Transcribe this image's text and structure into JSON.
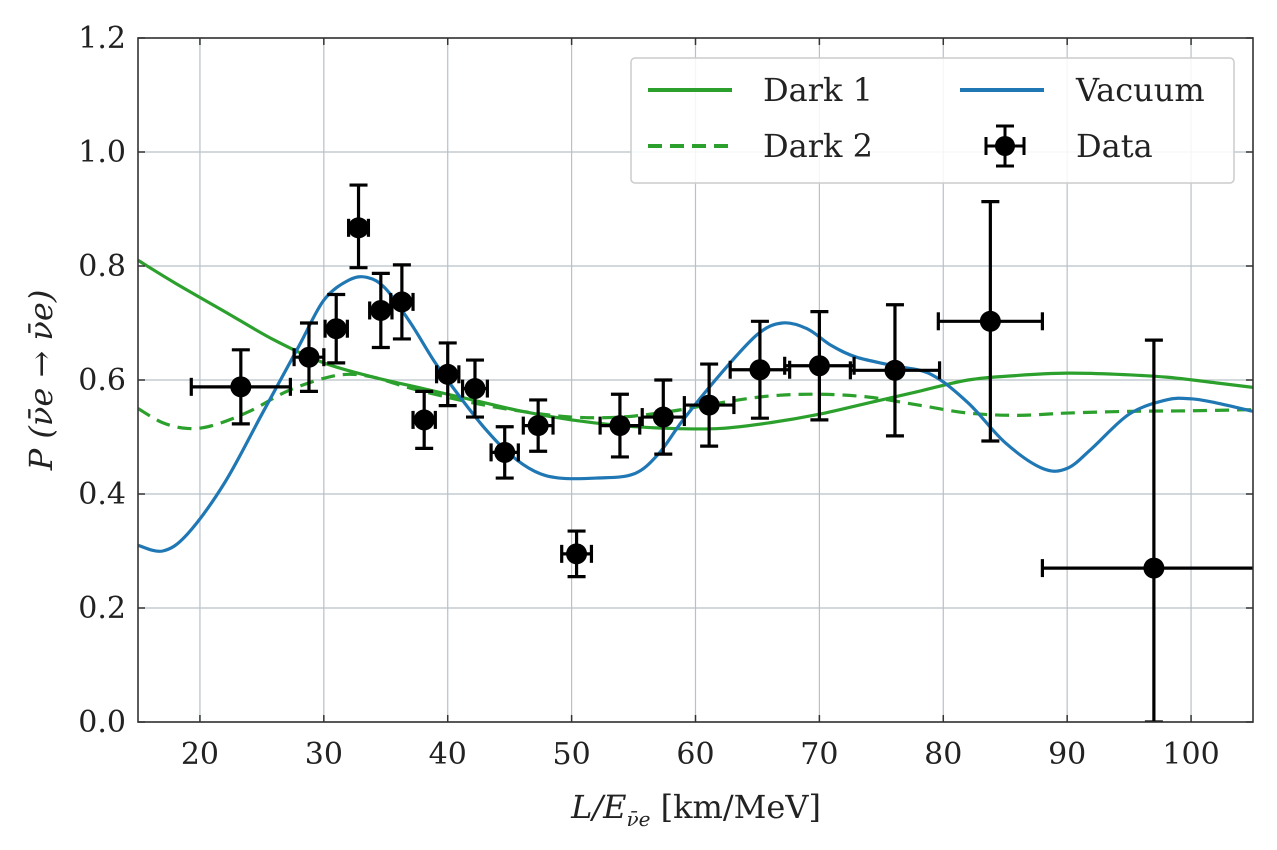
{
  "chart_data": {
    "type": "line",
    "xlabel": "L/E",
    "xlabel_subscript": "ν̄e",
    "xlabel_unit": "[km/MeV]",
    "ylabel": "P",
    "ylabel_argument": "(ν̄e → ν̄e)",
    "xlim": [
      15,
      105
    ],
    "ylim": [
      0.0,
      1.2
    ],
    "xticks": [
      20,
      30,
      40,
      50,
      60,
      70,
      80,
      90,
      100
    ],
    "yticks": [
      0.0,
      0.2,
      0.4,
      0.6,
      0.8,
      1.0,
      1.2
    ],
    "xtick_labels": [
      "20",
      "30",
      "40",
      "50",
      "60",
      "70",
      "80",
      "90",
      "100"
    ],
    "ytick_labels": [
      "0.0",
      "0.2",
      "0.4",
      "0.6",
      "0.8",
      "1.0",
      "1.2"
    ],
    "grid": true,
    "legend_position": "top-right",
    "legend_columns": 2,
    "series": [
      {
        "name": "Dark 1",
        "style": "solid",
        "color": "#2ca02c",
        "points": [
          [
            15,
            0.81
          ],
          [
            18,
            0.77
          ],
          [
            22,
            0.72
          ],
          [
            26,
            0.67
          ],
          [
            30,
            0.63
          ],
          [
            34,
            0.605
          ],
          [
            38,
            0.585
          ],
          [
            42,
            0.565
          ],
          [
            46,
            0.545
          ],
          [
            50,
            0.53
          ],
          [
            54,
            0.52
          ],
          [
            58,
            0.515
          ],
          [
            62,
            0.515
          ],
          [
            66,
            0.525
          ],
          [
            70,
            0.54
          ],
          [
            74,
            0.56
          ],
          [
            78,
            0.58
          ],
          [
            82,
            0.6
          ],
          [
            86,
            0.608
          ],
          [
            90,
            0.612
          ],
          [
            94,
            0.61
          ],
          [
            98,
            0.605
          ],
          [
            102,
            0.595
          ],
          [
            105,
            0.587
          ]
        ]
      },
      {
        "name": "Dark 2",
        "style": "dashed",
        "color": "#2ca02c",
        "points": [
          [
            15,
            0.55
          ],
          [
            17,
            0.525
          ],
          [
            19,
            0.515
          ],
          [
            21,
            0.52
          ],
          [
            24,
            0.545
          ],
          [
            27,
            0.58
          ],
          [
            30,
            0.603
          ],
          [
            32,
            0.61
          ],
          [
            34,
            0.605
          ],
          [
            36,
            0.592
          ],
          [
            38,
            0.58
          ],
          [
            42,
            0.56
          ],
          [
            46,
            0.545
          ],
          [
            50,
            0.535
          ],
          [
            54,
            0.535
          ],
          [
            58,
            0.545
          ],
          [
            62,
            0.56
          ],
          [
            66,
            0.572
          ],
          [
            70,
            0.575
          ],
          [
            74,
            0.57
          ],
          [
            78,
            0.556
          ],
          [
            82,
            0.542
          ],
          [
            86,
            0.538
          ],
          [
            90,
            0.542
          ],
          [
            95,
            0.545
          ],
          [
            100,
            0.546
          ],
          [
            105,
            0.548
          ]
        ]
      },
      {
        "name": "Vacuum",
        "style": "solid",
        "color": "#1f77b4",
        "points": [
          [
            15,
            0.31
          ],
          [
            17,
            0.3
          ],
          [
            19,
            0.33
          ],
          [
            22,
            0.42
          ],
          [
            25,
            0.54
          ],
          [
            28,
            0.66
          ],
          [
            30,
            0.74
          ],
          [
            32,
            0.775
          ],
          [
            33.5,
            0.78
          ],
          [
            35,
            0.76
          ],
          [
            37,
            0.7
          ],
          [
            39,
            0.63
          ],
          [
            41,
            0.57
          ],
          [
            43,
            0.515
          ],
          [
            45,
            0.47
          ],
          [
            47,
            0.44
          ],
          [
            49,
            0.428
          ],
          [
            52,
            0.428
          ],
          [
            55,
            0.435
          ],
          [
            57,
            0.47
          ],
          [
            59,
            0.53
          ],
          [
            62,
            0.61
          ],
          [
            65,
            0.68
          ],
          [
            67,
            0.7
          ],
          [
            69,
            0.69
          ],
          [
            71,
            0.66
          ],
          [
            73,
            0.64
          ],
          [
            76,
            0.625
          ],
          [
            79,
            0.61
          ],
          [
            82,
            0.56
          ],
          [
            85,
            0.49
          ],
          [
            88,
            0.445
          ],
          [
            90,
            0.445
          ],
          [
            92,
            0.48
          ],
          [
            95,
            0.54
          ],
          [
            98,
            0.565
          ],
          [
            100,
            0.567
          ],
          [
            102,
            0.56
          ],
          [
            105,
            0.545
          ]
        ]
      }
    ],
    "data": {
      "name": "Data",
      "color": "#000000",
      "points": [
        {
          "x": 23.3,
          "y": 0.588,
          "xerr": 4.0,
          "yerr_low": 0.065,
          "yerr_high": 0.065
        },
        {
          "x": 28.8,
          "y": 0.64,
          "xerr": 1.2,
          "yerr_low": 0.06,
          "yerr_high": 0.06
        },
        {
          "x": 31.0,
          "y": 0.69,
          "xerr": 0.9,
          "yerr_low": 0.06,
          "yerr_high": 0.06
        },
        {
          "x": 32.8,
          "y": 0.867,
          "xerr": 0.8,
          "yerr_low": 0.07,
          "yerr_high": 0.075
        },
        {
          "x": 34.6,
          "y": 0.722,
          "xerr": 0.9,
          "yerr_low": 0.065,
          "yerr_high": 0.065
        },
        {
          "x": 36.3,
          "y": 0.737,
          "xerr": 0.9,
          "yerr_low": 0.065,
          "yerr_high": 0.065
        },
        {
          "x": 38.1,
          "y": 0.53,
          "xerr": 0.9,
          "yerr_low": 0.05,
          "yerr_high": 0.05
        },
        {
          "x": 40.0,
          "y": 0.61,
          "xerr": 0.9,
          "yerr_low": 0.055,
          "yerr_high": 0.055
        },
        {
          "x": 42.2,
          "y": 0.585,
          "xerr": 1.0,
          "yerr_low": 0.05,
          "yerr_high": 0.05
        },
        {
          "x": 44.6,
          "y": 0.473,
          "xerr": 1.1,
          "yerr_low": 0.045,
          "yerr_high": 0.045
        },
        {
          "x": 47.3,
          "y": 0.52,
          "xerr": 1.2,
          "yerr_low": 0.045,
          "yerr_high": 0.045
        },
        {
          "x": 50.4,
          "y": 0.295,
          "xerr": 1.2,
          "yerr_low": 0.04,
          "yerr_high": 0.04
        },
        {
          "x": 53.9,
          "y": 0.52,
          "xerr": 1.6,
          "yerr_low": 0.055,
          "yerr_high": 0.055
        },
        {
          "x": 57.4,
          "y": 0.535,
          "xerr": 1.7,
          "yerr_low": 0.065,
          "yerr_high": 0.065
        },
        {
          "x": 61.1,
          "y": 0.556,
          "xerr": 2.0,
          "yerr_low": 0.072,
          "yerr_high": 0.072
        },
        {
          "x": 65.2,
          "y": 0.618,
          "xerr": 2.4,
          "yerr_low": 0.085,
          "yerr_high": 0.085
        },
        {
          "x": 70.0,
          "y": 0.625,
          "xerr": 2.8,
          "yerr_low": 0.095,
          "yerr_high": 0.095
        },
        {
          "x": 76.1,
          "y": 0.617,
          "xerr": 3.6,
          "yerr_low": 0.115,
          "yerr_high": 0.115
        },
        {
          "x": 83.8,
          "y": 0.703,
          "xerr": 4.2,
          "yerr_low": 0.21,
          "yerr_high": 0.21
        },
        {
          "x": 97.0,
          "y": 0.27,
          "xerr": 9.0,
          "yerr_low": 0.27,
          "yerr_high": 0.4
        }
      ]
    }
  }
}
